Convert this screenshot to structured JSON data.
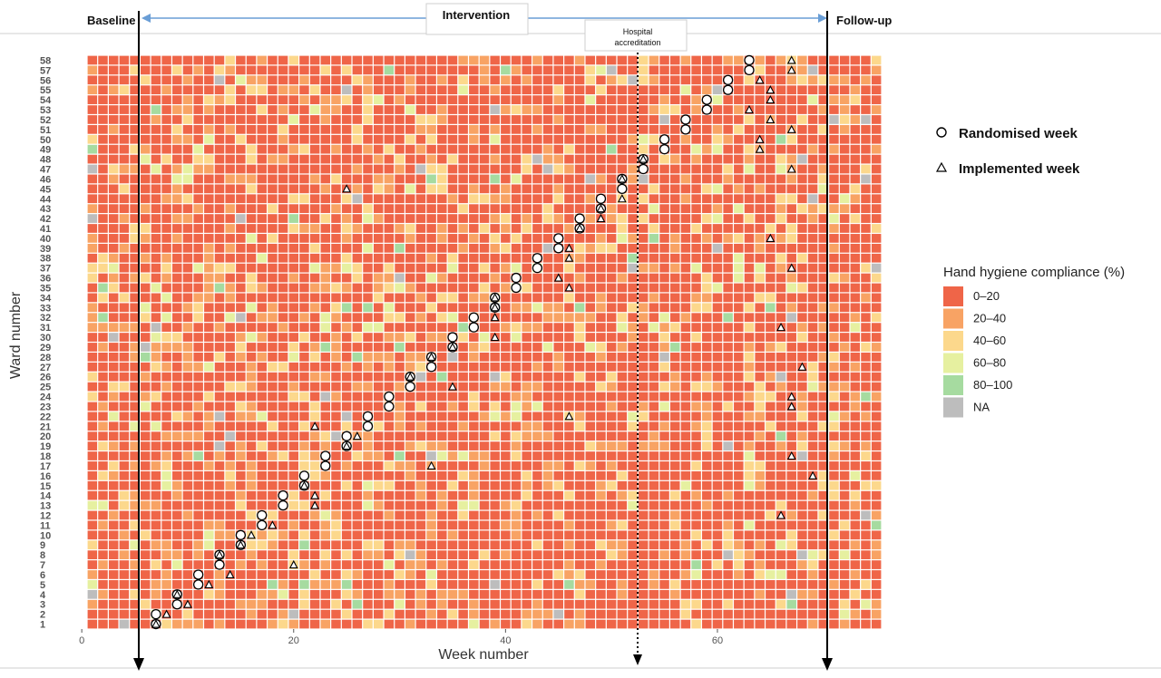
{
  "chart_data": {
    "type": "heatmap",
    "title": "",
    "xlabel": "Week number",
    "ylabel": "Ward number",
    "xlim": [
      0,
      75
    ],
    "ylim": [
      1,
      58
    ],
    "x_ticks": [
      0,
      20,
      40,
      60
    ],
    "y_ticks": [
      1,
      2,
      3,
      4,
      5,
      6,
      7,
      8,
      9,
      10,
      11,
      12,
      13,
      14,
      15,
      16,
      17,
      18,
      19,
      20,
      21,
      22,
      23,
      24,
      25,
      26,
      27,
      28,
      29,
      30,
      31,
      32,
      33,
      34,
      35,
      36,
      37,
      38,
      39,
      40,
      41,
      42,
      43,
      44,
      45,
      46,
      47,
      48,
      49,
      50,
      51,
      52,
      53,
      54,
      55,
      56,
      57,
      58
    ],
    "grid": false,
    "phases": {
      "baseline": "Baseline",
      "intervention": "Intervention",
      "followup": "Follow-up",
      "accreditation_line1": "Hospital",
      "accreditation_line2": "accreditation"
    },
    "phase_boundaries_week": {
      "baseline_end": 5,
      "accreditation": 52,
      "intervention_end": 70
    },
    "color_legend": {
      "title": "Hand hygiene compliance (%)",
      "entries": [
        {
          "label": "0–20",
          "color": "#ef6548"
        },
        {
          "label": "20–40",
          "color": "#f8a364"
        },
        {
          "label": "40–60",
          "color": "#fcd88c"
        },
        {
          "label": "60–80",
          "color": "#e6f0a0"
        },
        {
          "label": "80–100",
          "color": "#a6dba0"
        },
        {
          "label": "NA",
          "color": "#bdbdbd"
        }
      ]
    },
    "marker_legend": [
      {
        "label": "Randomised week",
        "shape": "circle"
      },
      {
        "label": "Implemented week",
        "shape": "triangle"
      }
    ],
    "randomised_week": [
      6,
      6,
      8,
      8,
      10,
      10,
      12,
      12,
      14,
      14,
      16,
      16,
      18,
      18,
      20,
      20,
      22,
      22,
      24,
      24,
      26,
      26,
      28,
      28,
      30,
      30,
      32,
      32,
      34,
      34,
      36,
      36,
      38,
      38,
      40,
      40,
      42,
      42,
      44,
      44,
      46,
      46,
      48,
      48,
      50,
      50,
      52,
      52,
      54,
      54,
      56,
      56,
      58,
      58,
      60,
      60,
      62,
      62
    ],
    "implemented_week": [
      6,
      7,
      9,
      8,
      11,
      13,
      19,
      12,
      14,
      15,
      17,
      65,
      21,
      21,
      20,
      68,
      32,
      66,
      24,
      25,
      21,
      45,
      66,
      66,
      34,
      30,
      67,
      32,
      34,
      38,
      65,
      38,
      38,
      38,
      45,
      44,
      66,
      45,
      45,
      64,
      46,
      48,
      48,
      50,
      24,
      50,
      66,
      52,
      63,
      63,
      66,
      64,
      62,
      64,
      64,
      63,
      66,
      66
    ]
  }
}
